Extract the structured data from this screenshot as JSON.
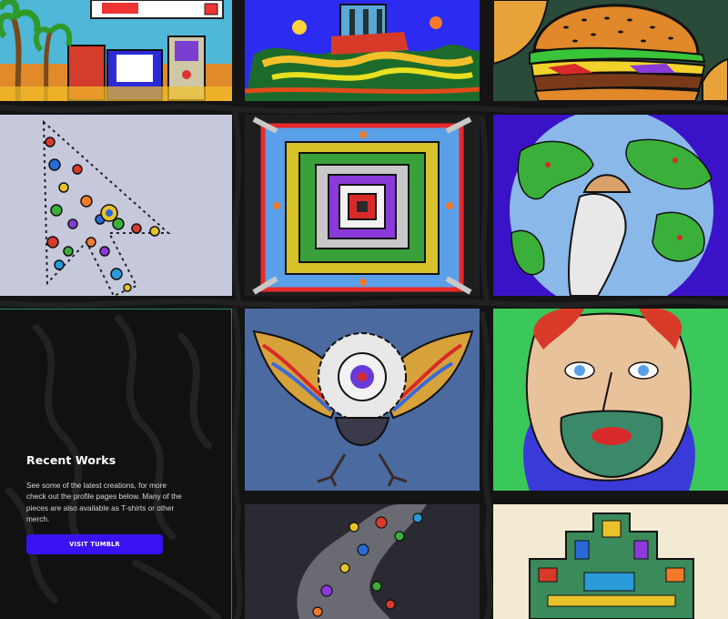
{
  "recent_works": {
    "title": "Recent Works",
    "description": "See some of the latest creations, for more check out the profile pages below. Many of the pieces are also available as T-shirts or other merch.",
    "button_label": "VISIT TUMBLR"
  },
  "colors": {
    "page_background": "#141414",
    "panel_border": "#1f8a62",
    "button": "#3a12f2"
  },
  "gallery": [
    {
      "id": "artwork-retro-computer"
    },
    {
      "id": "artwork-blue-scene"
    },
    {
      "id": "artwork-burgers"
    },
    {
      "id": "artwork-cursor-arrow"
    },
    {
      "id": "artwork-mandala-square"
    },
    {
      "id": "artwork-earth-hand"
    },
    {
      "id": "artwork-eye-bird"
    },
    {
      "id": "artwork-portrait-face"
    },
    {
      "id": "artwork-dark-figure"
    },
    {
      "id": "artwork-tower-blocks"
    }
  ]
}
